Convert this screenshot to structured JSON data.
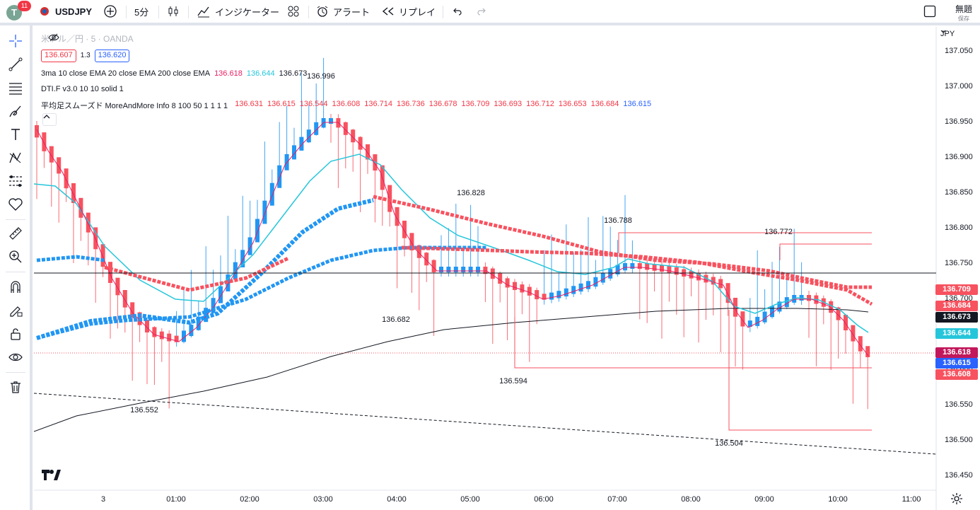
{
  "topbar": {
    "avatar_letter": "T",
    "notif_count": "11",
    "symbol": "USDJPY",
    "interval": "5分",
    "indicators": "インジケーター",
    "alert": "アラート",
    "replay": "リプレイ",
    "layout_name": "無題",
    "save": "保存"
  },
  "legend": {
    "title": "米ドル／円 · 5 · OANDA",
    "bid": "136.607",
    "spread": "1.3",
    "ask": "136.620",
    "ma_name": "3ma 10 close EMA 20 close EMA 200 close EMA",
    "ma_values": [
      "136.618",
      "136.644",
      "136.673"
    ],
    "ma_colors": [
      "#e91e63",
      "#26c6da",
      "#131722"
    ],
    "dti": "DTI.F v3.0 10 10 solid 1",
    "ha_name": "平均足スムーズド MoreAndMore Info 8 100 50 1 1 1 1",
    "ha_values": [
      "136.631",
      "136.615",
      "136.544",
      "136.608",
      "136.714",
      "136.736",
      "136.678",
      "136.709",
      "136.693",
      "136.712",
      "136.653",
      "136.684",
      "136.615"
    ]
  },
  "axis": {
    "currency": "JPY",
    "y_ticks": [
      "137.050",
      "137.000",
      "136.950",
      "136.900",
      "136.850",
      "136.800",
      "136.750",
      "136.700",
      "136.650",
      "136.600",
      "136.550",
      "136.500",
      "136.450"
    ],
    "x_ticks": [
      "3",
      "01:00",
      "02:00",
      "03:00",
      "04:00",
      "05:00",
      "06:00",
      "07:00",
      "08:00",
      "09:00",
      "10:00",
      "11:00"
    ]
  },
  "price_labels": [
    {
      "value": "136.709",
      "color": "#f7525f"
    },
    {
      "value": "136.684",
      "color": "#f7525f"
    },
    {
      "value": "136.673",
      "color": "#131722"
    },
    {
      "value": "136.644",
      "color": "#26c6da"
    },
    {
      "value": "136.618",
      "color": "#c2185b"
    },
    {
      "value": "136.615",
      "color": "#2962ff"
    },
    {
      "value": "136.608",
      "color": "#f7525f"
    }
  ],
  "annotations": [
    "136.996",
    "136.828",
    "136.788",
    "136.772",
    "136.682",
    "136.594",
    "136.552",
    "136.504"
  ],
  "colors": {
    "up": "#2196f3",
    "down": "#f7525f",
    "ema20": "#26c6da",
    "ema10": "#e91e63"
  }
}
